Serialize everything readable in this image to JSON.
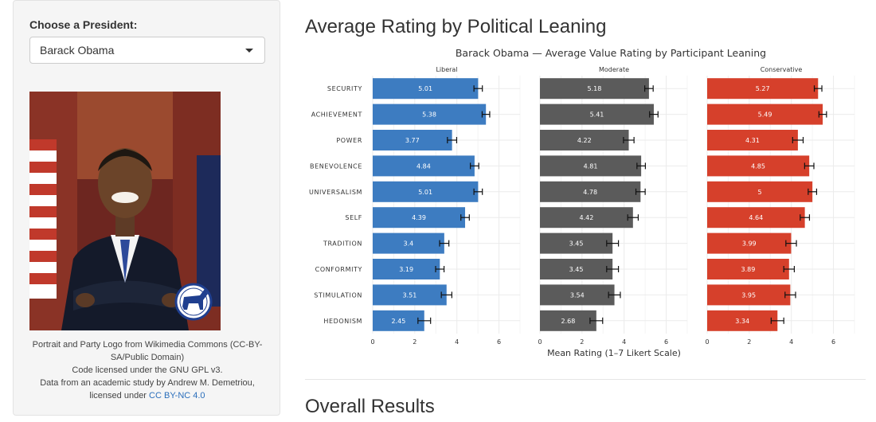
{
  "sidebar": {
    "select_label": "Choose a President:",
    "selected_president": "Barack Obama",
    "caption_line1": "Portrait and Party Logo from Wikimedia Commons (CC-BY-SA/Public Domain)",
    "caption_line2": "Code licensed under the GNU GPL v3.",
    "caption_line3": "Data from an academic study by Andrew M. Demetriou, licensed under",
    "caption_link": "CC BY-NC 4.0",
    "party_logo_icon": "democratic-donkey-icon"
  },
  "main": {
    "title": "Average Rating by Political Leaning",
    "overall_title": "Overall Results"
  },
  "colors": {
    "liberal": "#3d7cc1",
    "moderate": "#5b5b5b",
    "conservative": "#d6402b"
  },
  "chart_data": {
    "type": "bar",
    "orientation": "horizontal",
    "title": "Barack Obama — Average Value Rating by Participant Leaning",
    "xlabel": "Mean Rating (1–7 Likert Scale)",
    "ylabel": "",
    "xlim": [
      0,
      7
    ],
    "x_ticks": [
      0,
      2,
      4,
      6
    ],
    "grid": true,
    "categories": [
      "SECURITY",
      "ACHIEVEMENT",
      "POWER",
      "BENEVOLENCE",
      "UNIVERSALISM",
      "SELF",
      "TRADITION",
      "CONFORMITY",
      "STIMULATION",
      "HEDONISM"
    ],
    "series": [
      {
        "name": "Liberal",
        "values": [
          5.01,
          5.38,
          3.77,
          4.84,
          5.01,
          4.39,
          3.4,
          3.19,
          3.51,
          2.45
        ],
        "value_labels": [
          "5.01",
          "5.38",
          "3.77",
          "4.84",
          "5.01",
          "4.39",
          "3.4",
          "3.19",
          "3.51",
          "2.45"
        ],
        "errors": [
          0.2,
          0.18,
          0.22,
          0.2,
          0.2,
          0.2,
          0.22,
          0.2,
          0.25,
          0.3
        ]
      },
      {
        "name": "Moderate",
        "values": [
          5.18,
          5.41,
          4.22,
          4.81,
          4.78,
          4.42,
          3.45,
          3.45,
          3.54,
          2.68
        ],
        "value_labels": [
          "5.18",
          "5.41",
          "4.22",
          "4.81",
          "4.78",
          "4.42",
          "3.45",
          "3.45",
          "3.54",
          "2.68"
        ],
        "errors": [
          0.2,
          0.2,
          0.25,
          0.2,
          0.22,
          0.25,
          0.28,
          0.28,
          0.28,
          0.3
        ]
      },
      {
        "name": "Conservative",
        "values": [
          5.27,
          5.49,
          4.31,
          4.85,
          5.0,
          4.64,
          3.99,
          3.89,
          3.95,
          3.34
        ],
        "value_labels": [
          "5.27",
          "5.49",
          "4.31",
          "4.85",
          "5",
          "4.64",
          "3.99",
          "3.89",
          "3.95",
          "3.34"
        ],
        "errors": [
          0.18,
          0.18,
          0.25,
          0.22,
          0.2,
          0.22,
          0.25,
          0.25,
          0.25,
          0.3
        ]
      }
    ]
  }
}
